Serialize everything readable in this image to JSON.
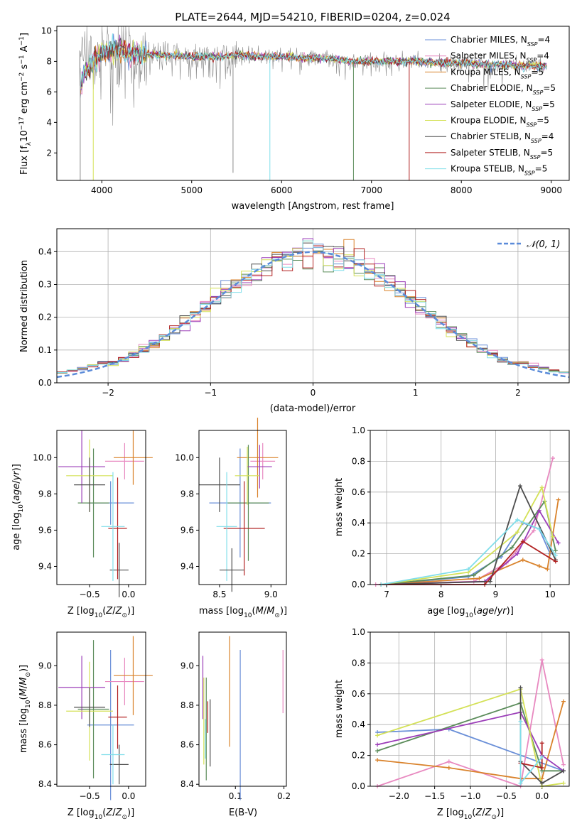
{
  "figure_title": "PLATE=2644, MJD=54210, FIBERID=0204, z=0.024",
  "colors": {
    "chabrier_miles": "#6a8fd8",
    "salpeter_miles": "#e889c0",
    "kroupa_miles": "#d9822b",
    "chabrier_elodie": "#5b8c5a",
    "salpeter_elodie": "#9b3db8",
    "kroupa_elodie": "#d4e157",
    "chabrier_stelib": "#4d4d4d",
    "salpeter_stelib": "#b22222",
    "kroupa_stelib": "#80deea",
    "data_spectrum": "#8c8c8c",
    "gaussian": "#5b8bd9"
  },
  "chart_data": [
    {
      "id": "spectrum",
      "type": "line",
      "title": "PLATE=2644, MJD=54210, FIBERID=0204, z=0.024",
      "xlabel": "wavelength [Angstrom, rest frame]",
      "ylabel": "Flux [f_λ 10^-17 erg cm^-2 s^-1 A^-1]",
      "xlim": [
        3500,
        9200
      ],
      "ylim": [
        0.2,
        10.3
      ],
      "xticks": [
        "4000",
        "5000",
        "6000",
        "7000",
        "8000",
        "9000"
      ],
      "yticks": [
        "2",
        "4",
        "6",
        "8",
        "10"
      ],
      "legend_position": "upper right",
      "legend": [
        {
          "label": "Chabrier MILES, N",
          "sub": "SSP",
          "tail": "=4",
          "color": "chabrier_miles"
        },
        {
          "label": "Salpeter MILES, N",
          "sub": "SSP",
          "tail": "=4",
          "color": "salpeter_miles"
        },
        {
          "label": "Kroupa MILES, N",
          "sub": "SSP",
          "tail": "=5",
          "color": "kroupa_miles"
        },
        {
          "label": "Chabrier ELODIE, N",
          "sub": "SSP",
          "tail": "=5",
          "color": "chabrier_elodie"
        },
        {
          "label": "Salpeter ELODIE, N",
          "sub": "SSP",
          "tail": "=5",
          "color": "salpeter_elodie"
        },
        {
          "label": "Kroupa ELODIE, N",
          "sub": "SSP",
          "tail": "=5",
          "color": "kroupa_elodie"
        },
        {
          "label": "Chabrier STELIB, N",
          "sub": "SSP",
          "tail": "=4",
          "color": "chabrier_stelib"
        },
        {
          "label": "Salpeter STELIB, N",
          "sub": "SSP",
          "tail": "=5",
          "color": "salpeter_stelib"
        },
        {
          "label": "Kroupa STELIB, N",
          "sub": "SSP",
          "tail": "=5",
          "color": "kroupa_stelib"
        }
      ],
      "continuum": {
        "x": [
          3750,
          3800,
          3900,
          4000,
          4100,
          4200,
          4300,
          4500,
          4700,
          5000,
          5300,
          5500,
          5800,
          6000,
          6300,
          6500,
          6800,
          7000,
          7300,
          7500,
          7800,
          8000,
          8300,
          8500,
          8700,
          9000
        ],
        "y": [
          7.4,
          8.2,
          8.0,
          8.6,
          8.7,
          8.8,
          8.5,
          8.5,
          8.4,
          8.3,
          8.3,
          8.4,
          8.3,
          8.3,
          8.2,
          8.2,
          8.0,
          8.0,
          8.0,
          8.0,
          7.9,
          7.9,
          7.8,
          7.8,
          7.7,
          7.7
        ]
      },
      "dropouts": [
        {
          "x": 3760,
          "y": 0.2,
          "series": "data"
        },
        {
          "x": 3905,
          "y": 0.2,
          "series": "kroupa_elodie"
        },
        {
          "x": 5460,
          "y": 0.7,
          "series": "data"
        },
        {
          "x": 5870,
          "y": 0.2,
          "series": "kroupa_stelib"
        },
        {
          "x": 6800,
          "y": 0.2,
          "series": "chabrier_elodie"
        },
        {
          "x": 7420,
          "y": 0.2,
          "series": "salpeter_stelib"
        }
      ]
    },
    {
      "id": "residuals",
      "type": "line",
      "xlabel": "(data-model)/error",
      "ylabel": "Normed distribution",
      "xlim": [
        -2.5,
        2.5
      ],
      "ylim": [
        0.0,
        0.47
      ],
      "xticks": [
        "−2",
        "−1",
        "0",
        "1",
        "2"
      ],
      "yticks": [
        "0.0",
        "0.1",
        "0.2",
        "0.3",
        "0.4"
      ],
      "grid": true,
      "legend_position": "upper right",
      "legend": [
        {
          "label": "𝒩(0, 1)",
          "color": "gaussian",
          "style": "dashed"
        }
      ],
      "gaussian": {
        "mean": 0,
        "sigma": 1
      },
      "bin_width": 0.1,
      "bins_start": -2.5
    },
    {
      "id": "age_vs_z",
      "type": "scatter",
      "xlabel": "Z [log10(Z/Z⊙)]",
      "ylabel": "age [log10(age/yr)]",
      "xlim": [
        -0.92,
        0.22
      ],
      "ylim": [
        9.3,
        10.15
      ],
      "xticks": [
        "−0.5",
        "0.0"
      ],
      "yticks": [
        "9.4",
        "9.6",
        "9.8",
        "10.0"
      ],
      "points": [
        {
          "color": "chabrier_miles",
          "x": -0.23,
          "xerr": 0.3,
          "y": 9.75,
          "yerr": 0.12
        },
        {
          "color": "salpeter_miles",
          "x": -0.05,
          "xerr": 0.25,
          "y": 9.98,
          "yerr": 0.1
        },
        {
          "color": "kroupa_miles",
          "x": 0.06,
          "xerr": 0.25,
          "y": 10.0,
          "yerr": 0.15
        },
        {
          "color": "chabrier_elodie",
          "x": -0.45,
          "xerr": 0.2,
          "y": 9.75,
          "yerr": 0.3
        },
        {
          "color": "salpeter_elodie",
          "x": -0.6,
          "xerr": 0.3,
          "y": 9.95,
          "yerr": 0.2
        },
        {
          "color": "kroupa_elodie",
          "x": -0.5,
          "xerr": 0.3,
          "y": 9.9,
          "yerr": 0.2
        },
        {
          "color": "chabrier_stelib",
          "x": -0.12,
          "xerr": 0.12,
          "y": 9.38,
          "yerr": 0.15
        },
        {
          "color": "salpeter_stelib",
          "x": -0.14,
          "xerr": 0.12,
          "y": 9.61,
          "yerr": 0.28
        },
        {
          "color": "kroupa_stelib",
          "x": -0.2,
          "xerr": 0.15,
          "y": 9.62,
          "yerr": 0.3
        },
        {
          "color": "chabrier_stelib",
          "x": -0.5,
          "xerr": 0.2,
          "y": 9.85,
          "yerr": 0.15
        }
      ]
    },
    {
      "id": "age_vs_mass",
      "type": "scatter",
      "xlabel": "mass [log10(M/M⊙)]",
      "ylabel": "",
      "xlim": [
        8.3,
        9.15
      ],
      "ylim": [
        9.3,
        10.15
      ],
      "xticks": [
        "8.5",
        "9.0"
      ],
      "yticks": [
        "9.4",
        "9.6",
        "9.8",
        "10.0"
      ],
      "points": [
        {
          "color": "chabrier_miles",
          "x": 8.7,
          "xerr": 0.3,
          "y": 9.75,
          "yerr": 0.3
        },
        {
          "color": "salpeter_miles",
          "x": 8.92,
          "xerr": 0.12,
          "y": 9.98,
          "yerr": 0.1
        },
        {
          "color": "kroupa_miles",
          "x": 8.87,
          "xerr": 0.2,
          "y": 10.0,
          "yerr": 0.22
        },
        {
          "color": "chabrier_elodie",
          "x": 8.78,
          "xerr": 0.2,
          "y": 9.75,
          "yerr": 0.32
        },
        {
          "color": "salpeter_elodie",
          "x": 8.89,
          "xerr": 0.12,
          "y": 9.95,
          "yerr": 0.12
        },
        {
          "color": "kroupa_elodie",
          "x": 8.77,
          "xerr": 0.12,
          "y": 9.9,
          "yerr": 0.16
        },
        {
          "color": "chabrier_stelib",
          "x": 8.5,
          "xerr": 0.2,
          "y": 9.85,
          "yerr": 0.15
        },
        {
          "color": "salpeter_stelib",
          "x": 8.74,
          "xerr": 0.2,
          "y": 9.61,
          "yerr": 0.26
        },
        {
          "color": "kroupa_stelib",
          "x": 8.57,
          "xerr": 0.1,
          "y": 9.62,
          "yerr": 0.3
        },
        {
          "color": "chabrier_stelib",
          "x": 8.62,
          "xerr": 0.12,
          "y": 9.38,
          "yerr": 0.12
        }
      ]
    },
    {
      "id": "weight_vs_age",
      "type": "line",
      "xlabel": "age [log10(age/yr)]",
      "ylabel": "mass weight",
      "xlim": [
        6.7,
        10.35
      ],
      "ylim": [
        0.0,
        1.0
      ],
      "xticks": [
        "7",
        "8",
        "9",
        "10"
      ],
      "yticks": [
        "0.0",
        "0.2",
        "0.4",
        "0.6",
        "0.8",
        "1.0"
      ],
      "grid": true,
      "series": [
        {
          "color": "chabrier_miles",
          "x": [
            6.9,
            8.5,
            9.1,
            9.5,
            9.8,
            10.0
          ],
          "y": [
            0.0,
            0.05,
            0.18,
            0.4,
            0.36,
            0.2
          ]
        },
        {
          "color": "salpeter_miles",
          "x": [
            6.8,
            8.6,
            9.2,
            9.7,
            10.05
          ],
          "y": [
            0.0,
            0.02,
            0.14,
            0.35,
            0.82
          ]
        },
        {
          "color": "kroupa_miles",
          "x": [
            6.9,
            8.7,
            9.5,
            9.8,
            9.95,
            10.15
          ],
          "y": [
            0.0,
            0.04,
            0.16,
            0.12,
            0.1,
            0.55
          ]
        },
        {
          "color": "chabrier_elodie",
          "x": [
            6.9,
            8.6,
            9.3,
            9.9,
            10.1
          ],
          "y": [
            0.0,
            0.06,
            0.24,
            0.54,
            0.22
          ]
        },
        {
          "color": "salpeter_elodie",
          "x": [
            6.9,
            8.8,
            9.4,
            9.8,
            10.15
          ],
          "y": [
            0.0,
            0.02,
            0.2,
            0.48,
            0.27
          ]
        },
        {
          "color": "kroupa_elodie",
          "x": [
            6.9,
            8.5,
            9.4,
            9.85,
            10.05
          ],
          "y": [
            0.0,
            0.08,
            0.34,
            0.63,
            0.31
          ]
        },
        {
          "color": "chabrier_stelib",
          "x": [
            6.9,
            8.9,
            9.45,
            10.1
          ],
          "y": [
            0.0,
            0.02,
            0.64,
            0.16
          ]
        },
        {
          "color": "salpeter_stelib",
          "x": [
            6.9,
            8.8,
            9.5,
            10.1
          ],
          "y": [
            0.0,
            0.0,
            0.28,
            0.15
          ]
        },
        {
          "color": "kroupa_stelib",
          "x": [
            6.9,
            8.5,
            9.4,
            9.8,
            10.1
          ],
          "y": [
            0.0,
            0.1,
            0.42,
            0.36,
            0.19
          ]
        }
      ]
    },
    {
      "id": "mass_vs_z",
      "type": "scatter",
      "xlabel": "Z [log10(Z/Z⊙)]",
      "ylabel": "mass [log10(M/M⊙)]",
      "xlim": [
        -0.92,
        0.22
      ],
      "ylim": [
        8.39,
        9.17
      ],
      "xticks": [
        "−0.5",
        "0.0"
      ],
      "yticks": [
        "8.4",
        "8.6",
        "8.8",
        "9.0"
      ],
      "points": [
        {
          "color": "chabrier_miles",
          "x": -0.23,
          "xerr": 0.3,
          "y": 8.7,
          "yerr": 0.38
        },
        {
          "color": "salpeter_miles",
          "x": -0.05,
          "xerr": 0.25,
          "y": 8.92,
          "yerr": 0.12
        },
        {
          "color": "kroupa_miles",
          "x": 0.06,
          "xerr": 0.25,
          "y": 8.95,
          "yerr": 0.2
        },
        {
          "color": "chabrier_elodie",
          "x": -0.45,
          "xerr": 0.2,
          "y": 8.78,
          "yerr": 0.35
        },
        {
          "color": "salpeter_elodie",
          "x": -0.6,
          "xerr": 0.3,
          "y": 8.89,
          "yerr": 0.16
        },
        {
          "color": "kroupa_elodie",
          "x": -0.5,
          "xerr": 0.3,
          "y": 8.77,
          "yerr": 0.25
        },
        {
          "color": "chabrier_stelib",
          "x": -0.12,
          "xerr": 0.12,
          "y": 8.5,
          "yerr": 0.1
        },
        {
          "color": "salpeter_stelib",
          "x": -0.14,
          "xerr": 0.12,
          "y": 8.74,
          "yerr": 0.16
        },
        {
          "color": "kroupa_stelib",
          "x": -0.2,
          "xerr": 0.15,
          "y": 8.55,
          "yerr": 0.15
        },
        {
          "color": "chabrier_stelib",
          "x": -0.5,
          "xerr": 0.2,
          "y": 8.79,
          "yerr": 0.1
        }
      ]
    },
    {
      "id": "mass_vs_ebv",
      "type": "scatter",
      "xlabel": "E(B-V)",
      "ylabel": "",
      "xlim": [
        0.025,
        0.205
      ],
      "ylim": [
        8.39,
        9.17
      ],
      "xticks": [
        "0.1",
        "0.2"
      ],
      "yticks": [
        "8.4",
        "8.6",
        "8.8",
        "9.0"
      ],
      "points": [
        {
          "color": "chabrier_miles",
          "x": 0.11,
          "y": 8.7,
          "yerr": 0.38
        },
        {
          "color": "salpeter_miles",
          "x": 0.198,
          "y": 8.92,
          "yerr": 0.16
        },
        {
          "color": "kroupa_miles",
          "x": 0.088,
          "y": 8.87,
          "yerr": 0.28
        },
        {
          "color": "chabrier_elodie",
          "x": 0.04,
          "y": 8.68,
          "yerr": 0.26
        },
        {
          "color": "salpeter_elodie",
          "x": 0.033,
          "y": 8.89,
          "yerr": 0.16
        },
        {
          "color": "kroupa_elodie",
          "x": 0.035,
          "y": 8.72,
          "yerr": 0.22
        },
        {
          "color": "chabrier_stelib",
          "x": 0.048,
          "y": 8.66,
          "yerr": 0.17
        },
        {
          "color": "salpeter_stelib",
          "x": 0.043,
          "y": 8.74,
          "yerr": 0.08
        },
        {
          "color": "kroupa_stelib",
          "x": 0.038,
          "y": 8.63,
          "yerr": 0.1
        }
      ]
    },
    {
      "id": "weight_vs_z",
      "type": "line",
      "xlabel": "Z [log10(Z/Z⊙)]",
      "ylabel": "mass weight",
      "xlim": [
        -2.4,
        0.38
      ],
      "ylim": [
        0.0,
        1.0
      ],
      "xticks": [
        "−2.0",
        "−1.5",
        "−1.0",
        "−0.5",
        "0.0"
      ],
      "yticks": [
        "0.0",
        "0.2",
        "0.4",
        "0.6",
        "0.8",
        "1.0"
      ],
      "grid": true,
      "series": [
        {
          "color": "chabrier_miles",
          "x": [
            -2.3,
            -1.3,
            0.3
          ],
          "y": [
            0.35,
            0.37,
            0.1
          ]
        },
        {
          "color": "salpeter_miles",
          "x": [
            -2.3,
            -1.3,
            -0.3,
            0.0,
            0.3
          ],
          "y": [
            0.0,
            0.16,
            0.0,
            0.82,
            0.14
          ]
        },
        {
          "color": "kroupa_miles",
          "x": [
            -2.3,
            -1.3,
            -0.3,
            0.0,
            0.3
          ],
          "y": [
            0.17,
            0.12,
            0.05,
            0.05,
            0.55
          ]
        },
        {
          "color": "chabrier_elodie",
          "x": [
            -2.3,
            -0.3,
            0.0,
            0.3
          ],
          "y": [
            0.23,
            0.54,
            0.1,
            0.1
          ]
        },
        {
          "color": "salpeter_elodie",
          "x": [
            -2.3,
            -0.3,
            0.0,
            0.3
          ],
          "y": [
            0.27,
            0.48,
            0.2,
            0.1
          ]
        },
        {
          "color": "kroupa_elodie",
          "x": [
            -2.3,
            -0.3,
            0.0,
            0.3
          ],
          "y": [
            0.33,
            0.63,
            0.0,
            0.02
          ]
        },
        {
          "color": "chabrier_stelib",
          "x": [
            -0.3,
            -0.3,
            0.0,
            0.3
          ],
          "y": [
            0.64,
            0.16,
            0.02,
            0.1
          ]
        },
        {
          "color": "salpeter_stelib",
          "x": [
            -0.3,
            0.0,
            0.0
          ],
          "y": [
            0.15,
            0.12,
            0.28
          ]
        },
        {
          "color": "kroupa_stelib",
          "x": [
            -0.3,
            -0.3,
            0.0
          ],
          "y": [
            0.42,
            0.02,
            0.19
          ]
        }
      ]
    }
  ]
}
